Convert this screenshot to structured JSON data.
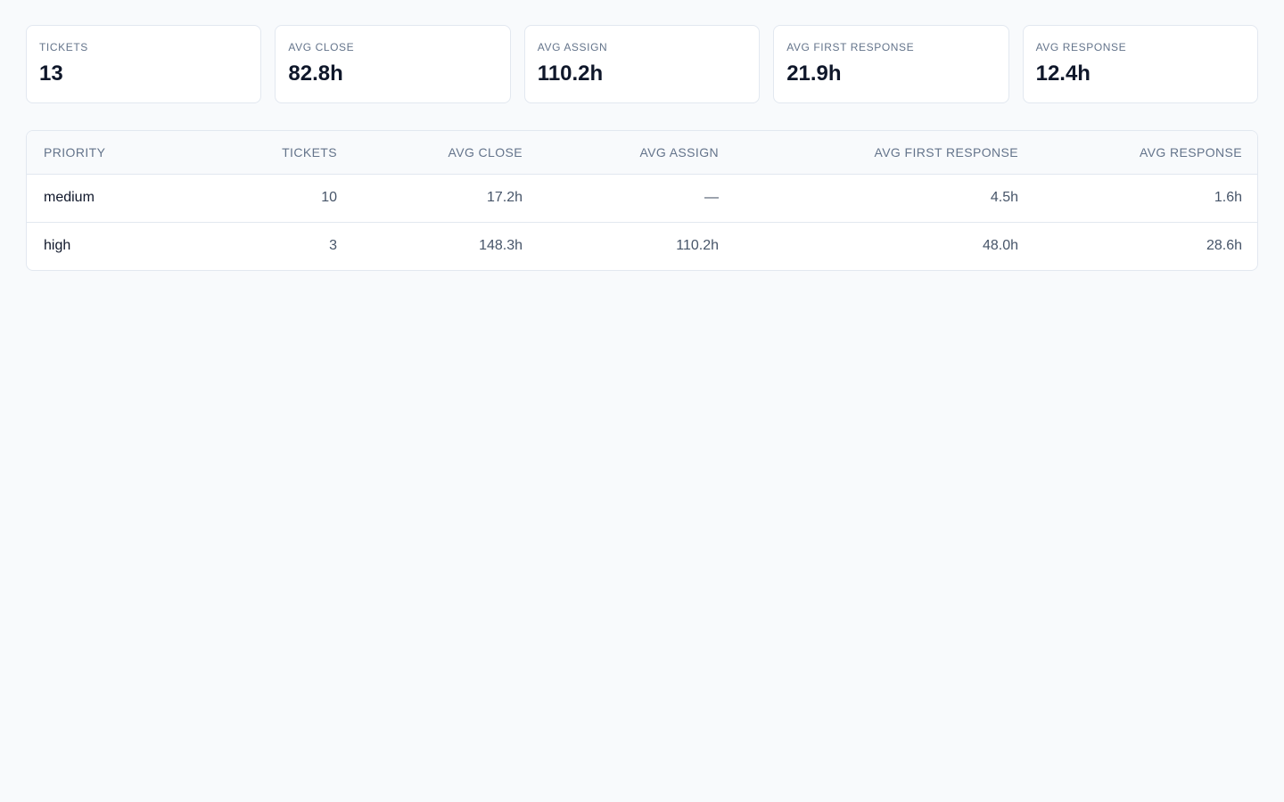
{
  "stats": [
    {
      "label": "TICKETS",
      "value": "13"
    },
    {
      "label": "AVG CLOSE",
      "value": "82.8h"
    },
    {
      "label": "AVG ASSIGN",
      "value": "110.2h"
    },
    {
      "label": "AVG FIRST RESPONSE",
      "value": "21.9h"
    },
    {
      "label": "AVG RESPONSE",
      "value": "12.4h"
    }
  ],
  "table": {
    "headers": [
      "PRIORITY",
      "TICKETS",
      "AVG CLOSE",
      "AVG ASSIGN",
      "AVG FIRST RESPONSE",
      "AVG RESPONSE"
    ],
    "rows": [
      {
        "priority": "medium",
        "tickets": "10",
        "avg_close": "17.2h",
        "avg_assign": "—",
        "avg_first_response": "4.5h",
        "avg_response": "1.6h"
      },
      {
        "priority": "high",
        "tickets": "3",
        "avg_close": "148.3h",
        "avg_assign": "110.2h",
        "avg_first_response": "48.0h",
        "avg_response": "28.6h"
      }
    ]
  },
  "colors": {
    "background": "#f8fafc",
    "card": "#ffffff",
    "border": "#e2e8f0",
    "label": "#64748b",
    "value": "#0f172a"
  }
}
